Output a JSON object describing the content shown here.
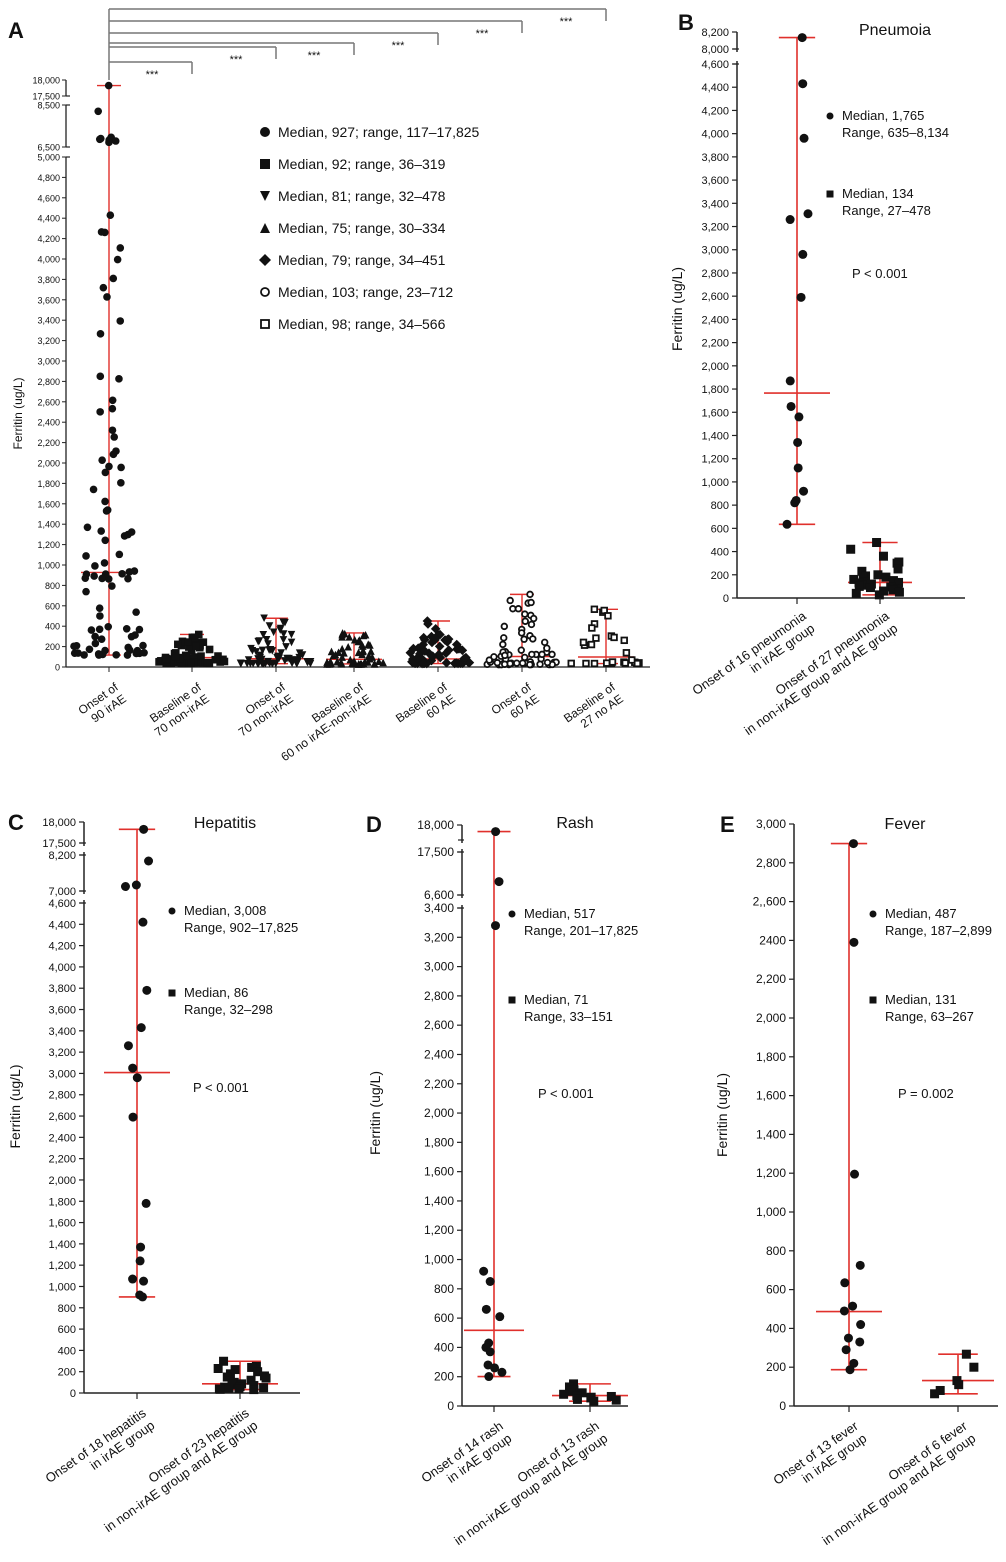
{
  "colors": {
    "marker": "#111111",
    "whisker": "#e0302c",
    "axis": "#222222",
    "bracket": "#777777"
  },
  "chart_data": [
    {
      "panel": "A",
      "type": "scatter",
      "title": "",
      "ylabel": "Ferritin (ug/L)",
      "y_ticks_main": [
        "0",
        "200",
        "400",
        "600",
        "800",
        "1,000",
        "1,200",
        "1,400",
        "1,600",
        "1,800",
        "2,000",
        "2,200",
        "2,400",
        "2,600",
        "2,800",
        "3,000",
        "3,200",
        "3,400",
        "3,600",
        "3,800",
        "4,000",
        "4,200",
        "4,400",
        "4,600",
        "4,800",
        "5,000"
      ],
      "y_ticks_break1": [
        "6,500",
        "8,500"
      ],
      "y_ticks_break2": [
        "17,500",
        "18,000"
      ],
      "categories": [
        "Onset of\n90 irAE",
        "Baseline of\n70 non-irAE",
        "Onset of\n70 non-irAE",
        "Baseline of\n60 no irAE-non-irAE",
        "Baseline of\n60 AE",
        "Onset of\n60 AE",
        "Baseline of\n27 no AE"
      ],
      "markers": [
        "circle",
        "square",
        "triangle-down",
        "triangle-up",
        "diamond",
        "open-circle",
        "open-square"
      ],
      "significance": "***",
      "legend": [
        {
          "marker": "circle",
          "text": "Median, 927; range, 117–17,825"
        },
        {
          "marker": "square",
          "text": "Median, 92; range, 36–319"
        },
        {
          "marker": "triangle-down",
          "text": "Median, 81; range, 32–478"
        },
        {
          "marker": "triangle-up",
          "text": "Median, 75; range, 30–334"
        },
        {
          "marker": "diamond",
          "text": "Median, 79; range, 34–451"
        },
        {
          "marker": "open-circle",
          "text": "Median, 103; range, 23–712"
        },
        {
          "marker": "open-square",
          "text": "Median, 98; range, 34–566"
        }
      ],
      "series": [
        {
          "median": 927,
          "min": 117,
          "max": 17825
        },
        {
          "median": 92,
          "min": 36,
          "max": 319
        },
        {
          "median": 81,
          "min": 32,
          "max": 478
        },
        {
          "median": 75,
          "min": 30,
          "max": 334
        },
        {
          "median": 79,
          "min": 34,
          "max": 451
        },
        {
          "median": 103,
          "min": 23,
          "max": 712
        },
        {
          "median": 98,
          "min": 34,
          "max": 566
        }
      ]
    },
    {
      "panel": "B",
      "type": "scatter",
      "title": "Pneumoia",
      "ylabel": "Ferritin (ug/L)",
      "y_ticks_main": [
        "0",
        "200",
        "400",
        "600",
        "800",
        "1,000",
        "1,200",
        "1,400",
        "1,600",
        "1,800",
        "2,000",
        "2,200",
        "2,400",
        "2,600",
        "2,800",
        "3,000",
        "3,200",
        "3,400",
        "3,600",
        "3,800",
        "4,000",
        "4,200",
        "4,400",
        "4,600"
      ],
      "y_ticks_break1": [
        "8,000",
        "8,200"
      ],
      "categories": [
        "Onset of 16 pneumonia\nin irAE group",
        "Onset of 27 pneumonia\nin non-irAE group and AE group"
      ],
      "legend": [
        {
          "marker": "circle",
          "text": "Median, 1,765\nRange, 635–8,134"
        },
        {
          "marker": "square",
          "text": "Median, 134\nRange, 27–478"
        }
      ],
      "pvalue": "P < 0.001",
      "series": [
        {
          "median": 1765,
          "min": 635,
          "max": 8134,
          "values": [
            8134,
            4430,
            3960,
            3310,
            3260,
            2960,
            2590,
            1870,
            1650,
            1560,
            1340,
            1120,
            920,
            840,
            820,
            635
          ]
        },
        {
          "median": 134,
          "min": 27,
          "max": 478,
          "values": [
            478,
            420,
            360,
            310,
            300,
            250,
            230,
            200,
            190,
            180,
            170,
            160,
            150,
            140,
            134,
            130,
            120,
            110,
            100,
            95,
            90,
            80,
            70,
            60,
            50,
            40,
            27
          ]
        }
      ]
    },
    {
      "panel": "C",
      "type": "scatter",
      "title": "Hepatitis",
      "ylabel": "Ferritin (ug/L)",
      "y_ticks_main": [
        "0",
        "200",
        "400",
        "600",
        "800",
        "1,000",
        "1,200",
        "1,400",
        "1,600",
        "1,800",
        "2,000",
        "2,200",
        "2,400",
        "2,600",
        "2,800",
        "3,000",
        "3,200",
        "3,400",
        "3,600",
        "3,800",
        "4,000",
        "4,200",
        "4,400",
        "4,600"
      ],
      "y_ticks_break1": [
        "7,000",
        "8,200"
      ],
      "y_ticks_break2": [
        "17,500",
        "18,000"
      ],
      "categories": [
        "Onset of 18 hepatitis\nin irAE group",
        "Onset of 23 hepatitis\nin non-irAE group and AE group"
      ],
      "legend": [
        {
          "marker": "circle",
          "text": "Median, 3,008\nRange, 902–17,825"
        },
        {
          "marker": "square",
          "text": "Median, 86\nRange, 32–298"
        }
      ],
      "pvalue": "P < 0.001",
      "series": [
        {
          "median": 3008,
          "min": 902,
          "max": 17825,
          "values": [
            17825,
            8000,
            7200,
            7150,
            4420,
            3780,
            3430,
            3260,
            3050,
            2960,
            2590,
            1780,
            1370,
            1240,
            1070,
            1050,
            920,
            902
          ]
        },
        {
          "median": 86,
          "min": 32,
          "max": 298,
          "values": [
            298,
            250,
            240,
            230,
            220,
            200,
            180,
            160,
            150,
            140,
            120,
            100,
            86,
            80,
            70,
            60,
            55,
            50,
            45,
            40,
            38,
            35,
            32
          ]
        }
      ]
    },
    {
      "panel": "D",
      "type": "scatter",
      "title": "Rash",
      "ylabel": "Ferritin (ug/L)",
      "y_ticks_main": [
        "0",
        "200",
        "400",
        "600",
        "800",
        "1,000",
        "1,200",
        "1,400",
        "1,600",
        "1,800",
        "2,000",
        "2,200",
        "2,400",
        "2,600",
        "2,800",
        "3,000",
        "3,200",
        "3,400"
      ],
      "y_ticks_break1": [
        "6,600",
        "17,500"
      ],
      "y_ticks_break2": [
        "18,000"
      ],
      "categories": [
        "Onset of 14 rash\nin irAE group",
        "Onset of 13 rash\nin non-irAE group and AE group"
      ],
      "legend": [
        {
          "marker": "circle",
          "text": "Median, 517\nRange, 201–17,825"
        },
        {
          "marker": "square",
          "text": "Median, 71\nRange, 33–151"
        }
      ],
      "pvalue": "P < 0.001",
      "series": [
        {
          "median": 517,
          "min": 201,
          "max": 17825,
          "values": [
            17825,
            10000,
            3280,
            920,
            850,
            660,
            610,
            430,
            400,
            370,
            280,
            260,
            230,
            201
          ]
        },
        {
          "median": 71,
          "min": 33,
          "max": 151,
          "values": [
            151,
            130,
            110,
            100,
            90,
            80,
            71,
            65,
            60,
            55,
            45,
            40,
            33
          ]
        }
      ]
    },
    {
      "panel": "E",
      "type": "scatter",
      "title": "Fever",
      "ylabel": "Ferritin (ug/L)",
      "y_ticks_main": [
        "0",
        "200",
        "400",
        "600",
        "800",
        "1,000",
        "1,200",
        "1,400",
        "1,600",
        "1,800",
        "2,000",
        "2,200",
        "2400",
        "2,,600",
        "2,800",
        "3,000"
      ],
      "categories": [
        "Onset of 13 fever\nin irAE group",
        "Onset of 6 fever\nin non-irAE group and AE group"
      ],
      "legend": [
        {
          "marker": "circle",
          "text": "Median, 487\nRange, 187–2,899"
        },
        {
          "marker": "square",
          "text": "Median, 131\nRange, 63–267"
        }
      ],
      "pvalue": "P = 0.002",
      "series": [
        {
          "median": 487,
          "min": 187,
          "max": 2899,
          "values": [
            2899,
            2390,
            1195,
            725,
            635,
            515,
            490,
            420,
            350,
            330,
            290,
            220,
            187
          ]
        },
        {
          "median": 131,
          "min": 63,
          "max": 267,
          "values": [
            267,
            200,
            131,
            110,
            80,
            63
          ]
        }
      ]
    }
  ]
}
